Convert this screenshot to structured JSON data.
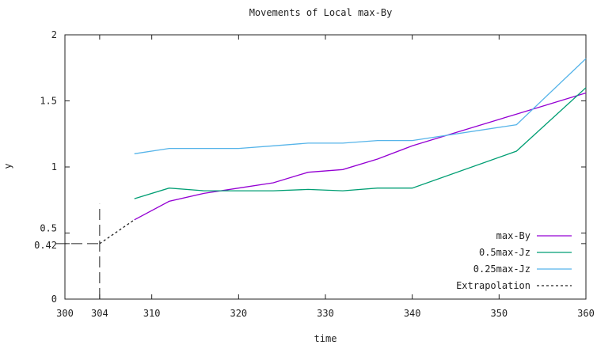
{
  "chart_data": {
    "type": "line",
    "title": "Movements of Local max-By",
    "xlabel": "time",
    "ylabel": "y",
    "xlim": [
      300,
      360
    ],
    "ylim": [
      0,
      2
    ],
    "x_ticks": [
      {
        "value": 300,
        "label": "300"
      },
      {
        "value": 304,
        "label": "304"
      },
      {
        "value": 310,
        "label": "310"
      },
      {
        "value": 320,
        "label": "320"
      },
      {
        "value": 330,
        "label": "330"
      },
      {
        "value": 340,
        "label": "340"
      },
      {
        "value": 350,
        "label": "350"
      },
      {
        "value": 360,
        "label": "360"
      }
    ],
    "y_ticks": [
      {
        "value": 0,
        "label": "0"
      },
      {
        "value": 0.42,
        "label": "0.42"
      },
      {
        "value": 0.5,
        "label": "0.5"
      },
      {
        "value": 1,
        "label": "1"
      },
      {
        "value": 1.5,
        "label": "1.5"
      },
      {
        "value": 2,
        "label": "2"
      }
    ],
    "grid": false,
    "legend_position": "bottom-right",
    "series": [
      {
        "name": "max-By",
        "color": "#9400d3",
        "dash": "solid",
        "x": [
          308,
          312,
          316,
          320,
          324,
          328,
          332,
          336,
          340,
          352,
          360
        ],
        "y": [
          0.6,
          0.74,
          0.8,
          0.84,
          0.88,
          0.96,
          0.98,
          1.06,
          1.16,
          1.4,
          1.56
        ]
      },
      {
        "name": "0.5max-Jz",
        "color": "#009e73",
        "dash": "solid",
        "x": [
          308,
          312,
          316,
          320,
          324,
          328,
          332,
          336,
          340,
          352,
          360
        ],
        "y": [
          0.76,
          0.84,
          0.82,
          0.82,
          0.82,
          0.83,
          0.82,
          0.84,
          0.84,
          1.12,
          1.6
        ]
      },
      {
        "name": "0.25max-Jz",
        "color": "#56b4e9",
        "dash": "solid",
        "x": [
          308,
          312,
          316,
          320,
          324,
          328,
          332,
          336,
          340,
          352,
          360
        ],
        "y": [
          1.1,
          1.14,
          1.14,
          1.14,
          1.16,
          1.18,
          1.18,
          1.2,
          1.2,
          1.32,
          1.82
        ]
      },
      {
        "name": "Extrapolation",
        "color": "#222222",
        "dash": "dashed",
        "x": [
          304,
          308
        ],
        "y": [
          0.42,
          0.6
        ]
      }
    ],
    "reference_marks": [
      {
        "orientation": "vertical",
        "at": 304,
        "from": 0,
        "to": 0.72
      },
      {
        "orientation": "horizontal",
        "at": 0.42,
        "from": 300,
        "to": 304
      }
    ]
  }
}
